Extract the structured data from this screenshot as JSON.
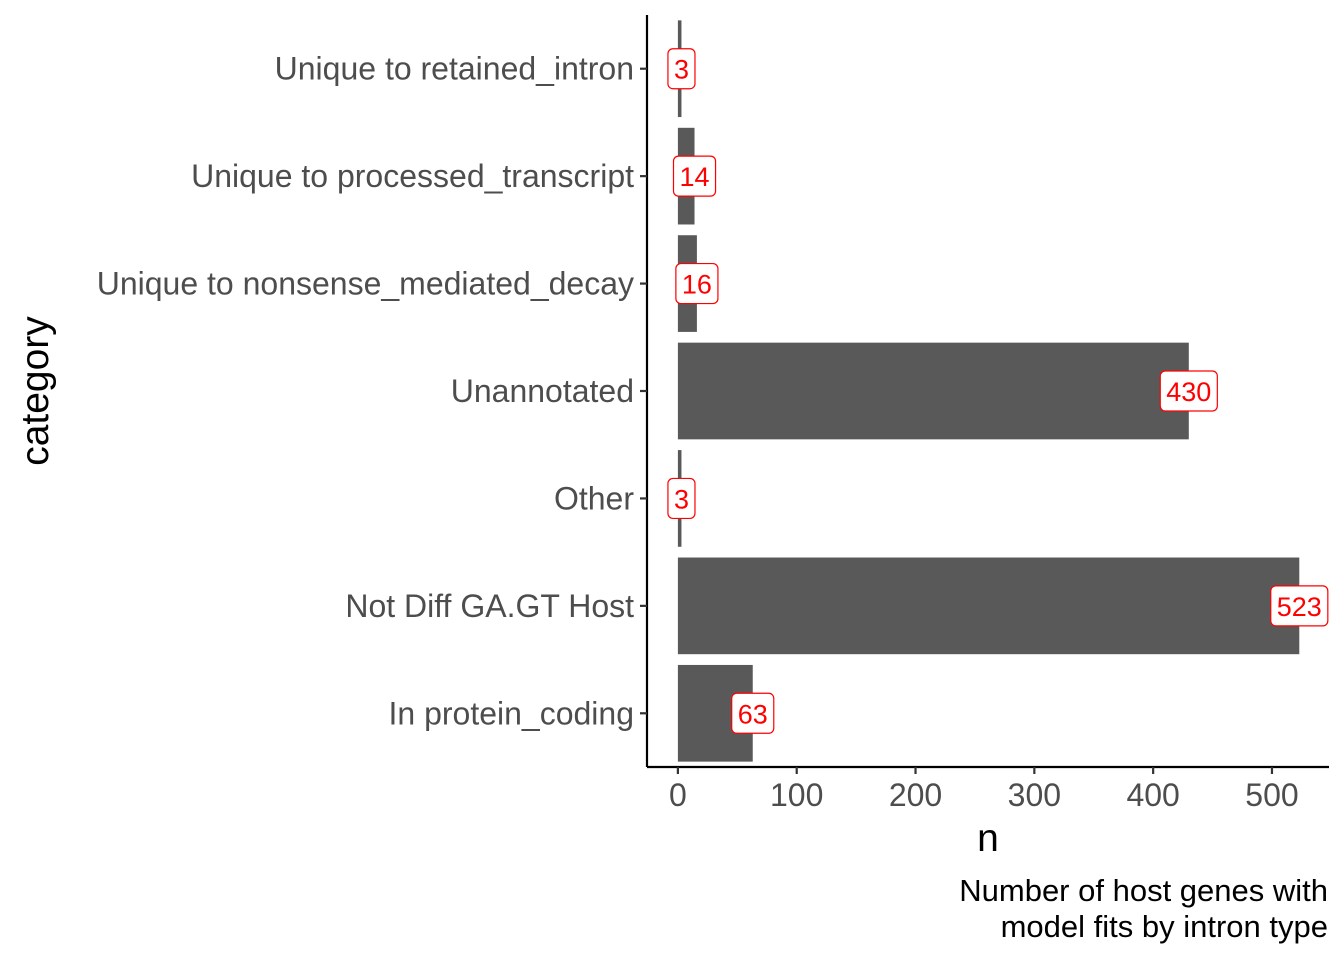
{
  "chart_data": {
    "type": "bar",
    "orientation": "horizontal",
    "categories": [
      "In protein_coding",
      "Not Diff GA.GT Host",
      "Other",
      "Unannotated",
      "Unique to nonsense_mediated_decay",
      "Unique to processed_transcript",
      "Unique to retained_intron"
    ],
    "values": [
      63,
      523,
      3,
      430,
      16,
      14,
      3
    ],
    "data_labels": [
      "63",
      "523",
      "3",
      "430",
      "16",
      "14",
      "3"
    ],
    "xlabel": "n",
    "ylabel": "category",
    "xlim": [
      -26,
      548
    ],
    "xticks": [
      0,
      100,
      200,
      300,
      400,
      500
    ],
    "xtick_labels": [
      "0",
      "100",
      "200",
      "300",
      "400",
      "500"
    ],
    "caption": [
      "Number of host genes with",
      "model fits by intron type"
    ],
    "grid": false,
    "legend": "none",
    "colors": {
      "bar": "#595959",
      "label_text": "#ff0000",
      "label_border": "#ff0000",
      "label_fill": "#ffffff",
      "axis": "#000000",
      "tick_label": "#4d4d4d"
    }
  }
}
